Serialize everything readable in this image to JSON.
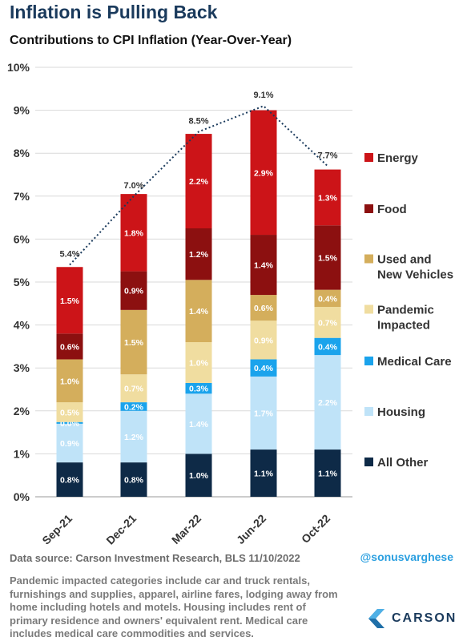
{
  "header": {
    "title": "Inflation is Pulling Back",
    "subtitle": "Contributions to CPI Inflation (Year-Over-Year)"
  },
  "chart_data": {
    "type": "bar",
    "stacked": true,
    "categories": [
      "Sep-21",
      "Dec-21",
      "Mar-22",
      "Jun-22",
      "Oct-22"
    ],
    "ylim": [
      0,
      10
    ],
    "y_ticks": [
      "0%",
      "1%",
      "2%",
      "3%",
      "4%",
      "5%",
      "6%",
      "7%",
      "8%",
      "9%",
      "10%"
    ],
    "grid": true,
    "legend_position": "right",
    "totals": [
      5.4,
      7.0,
      8.5,
      9.1,
      7.7
    ],
    "total_labels": [
      "5.4%",
      "7.0%",
      "8.5%",
      "9.1%",
      "7.7%"
    ],
    "series": [
      {
        "name": "All Other",
        "color": "#0e2a47",
        "values": [
          0.8,
          0.8,
          1.0,
          1.1,
          1.1
        ],
        "labels": [
          "0.8%",
          "0.8%",
          "1.0%",
          "1.1%",
          "1.1%"
        ]
      },
      {
        "name": "Housing",
        "color": "#bfe3f8",
        "values": [
          0.9,
          1.2,
          1.4,
          1.7,
          2.2
        ],
        "labels": [
          "0.9%",
          "1.2%",
          "1.4%",
          "1.7%",
          "2.2%"
        ]
      },
      {
        "name": "Medical Care",
        "color": "#1aa3ec",
        "values": [
          0.04,
          0.2,
          0.25,
          0.4,
          0.4
        ],
        "labels": [
          "0.0%",
          "0.2%",
          "0.3%",
          "0.4%",
          "0.4%"
        ]
      },
      {
        "name": "Pandemic Impacted",
        "color": "#f0dda0",
        "values": [
          0.46,
          0.65,
          0.95,
          0.9,
          0.72
        ],
        "labels": [
          "0.5%",
          "0.7%",
          "1.0%",
          "0.9%",
          "0.7%"
        ]
      },
      {
        "name": "Used and New Vehicles",
        "color": "#d4ae5c",
        "values": [
          1.0,
          1.5,
          1.45,
          0.6,
          0.4
        ],
        "labels": [
          "1.0%",
          "1.5%",
          "1.4%",
          "0.6%",
          "0.4%"
        ]
      },
      {
        "name": "Food",
        "color": "#8c1010",
        "values": [
          0.6,
          0.9,
          1.2,
          1.4,
          1.5
        ],
        "labels": [
          "0.6%",
          "0.9%",
          "1.2%",
          "1.4%",
          "1.5%"
        ]
      },
      {
        "name": "Energy",
        "color": "#cc1418",
        "values": [
          1.55,
          1.8,
          2.2,
          2.9,
          1.3
        ],
        "labels": [
          "1.5%",
          "1.8%",
          "2.2%",
          "2.9%",
          "1.3%"
        ]
      }
    ]
  },
  "legend": [
    {
      "lines": [
        "Energy"
      ],
      "color": "#cc1418"
    },
    {
      "lines": [
        "Food"
      ],
      "color": "#8c1010"
    },
    {
      "lines": [
        "Used and",
        "New Vehicles"
      ],
      "color": "#d4ae5c"
    },
    {
      "lines": [
        "Pandemic",
        "Impacted"
      ],
      "color": "#f0dda0"
    },
    {
      "lines": [
        "Medical Care"
      ],
      "color": "#1aa3ec"
    },
    {
      "lines": [
        "Housing"
      ],
      "color": "#bfe3f8"
    },
    {
      "lines": [
        "All Other"
      ],
      "color": "#0e2a47"
    }
  ],
  "footer": {
    "source": "Data source: Carson Investment Research, BLS   11/10/2022",
    "handle": "@sonusvarghese",
    "note": "Pandemic impacted categories include car and truck rentals, furnishings and supplies, apparel, airline fares, lodging away from home including hotels and motels. Housing includes rent of primary residence and owners' equivalent rent. Medical care includes medical care commodities and services.",
    "brand": "CARSON",
    "logo_icon": "carson-chevron-logo"
  }
}
